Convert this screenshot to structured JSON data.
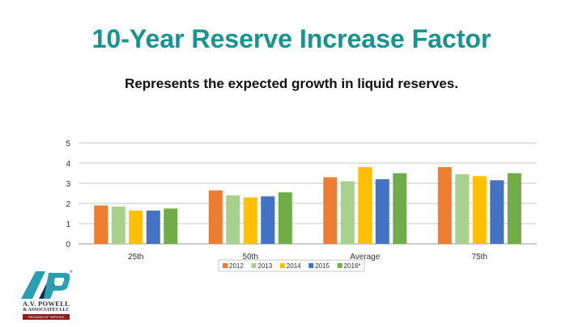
{
  "slide": {
    "title": "10-Year Reserve Increase Factor",
    "subtitle": "Represents the expected growth in liquid reserves."
  },
  "logo": {
    "name_line1": "A.V. POWELL",
    "name_line2": "& ASSOCIATES LLC",
    "tagline": "DECADES OF SERVICE",
    "colors": {
      "teal": "#2a9fb3",
      "navy": "#1a2d4d",
      "red": "#8a1f1f"
    }
  },
  "chart_data": {
    "type": "bar",
    "categories": [
      "25th",
      "50th",
      "Average",
      "75th"
    ],
    "series": [
      {
        "name": "2012",
        "color": "#ed7d31",
        "values": [
          1.9,
          2.65,
          3.3,
          3.8
        ]
      },
      {
        "name": "2013",
        "color": "#a9d18e",
        "values": [
          1.85,
          2.4,
          3.1,
          3.45
        ]
      },
      {
        "name": "2014",
        "color": "#ffc000",
        "values": [
          1.65,
          2.3,
          3.8,
          3.35
        ]
      },
      {
        "name": "2015",
        "color": "#4472c4",
        "values": [
          1.65,
          2.35,
          3.2,
          3.15
        ]
      },
      {
        "name": "2016*",
        "color": "#70ad47",
        "values": [
          1.75,
          2.55,
          3.5,
          3.5
        ]
      }
    ],
    "ylim": [
      0,
      5
    ],
    "yticks": [
      0,
      1,
      2,
      3,
      4,
      5
    ],
    "grid": true,
    "legend": "bottom"
  }
}
